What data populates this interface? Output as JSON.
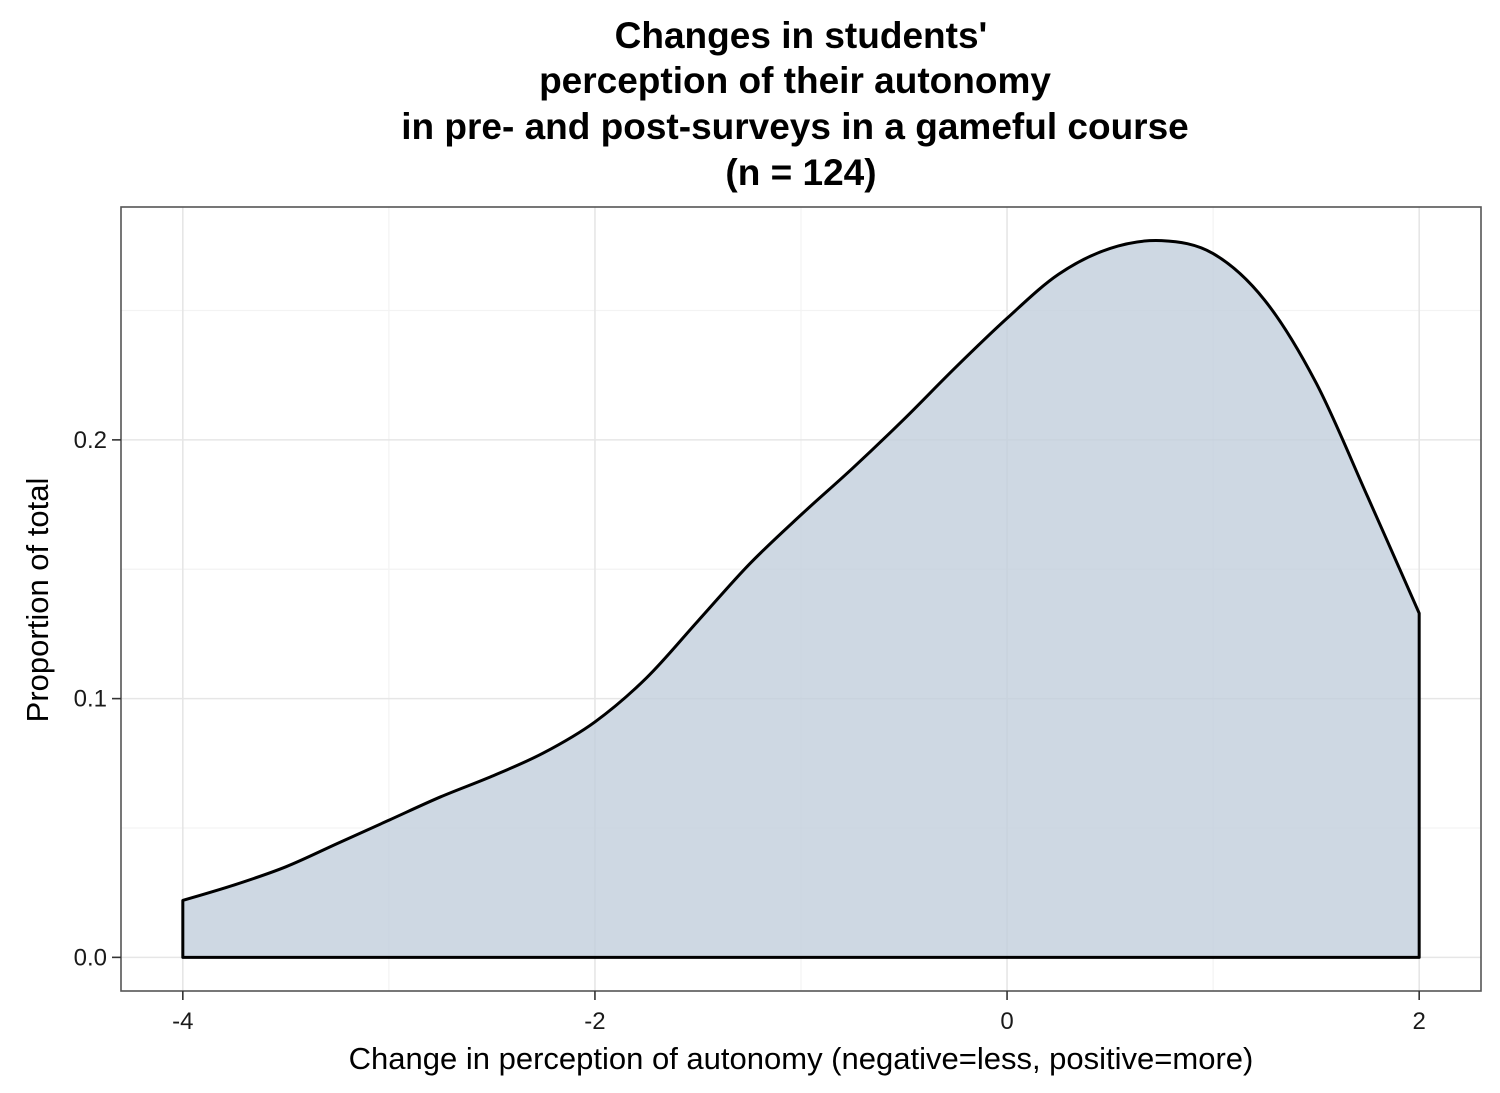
{
  "chart_data": {
    "type": "area",
    "title_lines": [
      "Changes in students'",
      "perception of their autonomy",
      "in pre- and post-surveys in a gameful course",
      "(n = 124)"
    ],
    "xlabel": "Change in perception of autonomy (negative=less, positive=more)",
    "ylabel": "Proportion of total",
    "xlim": [
      -4.3,
      2.3
    ],
    "ylim": [
      -0.013,
      0.29
    ],
    "x_ticks": [
      -4,
      -2,
      0,
      2
    ],
    "x_tick_labels": [
      "-4",
      "-2",
      "0",
      "2"
    ],
    "y_ticks": [
      0.0,
      0.1,
      0.2
    ],
    "y_tick_labels": [
      "0.0",
      "0.1",
      "0.2"
    ],
    "x_minor": [
      -3,
      -1,
      1
    ],
    "y_minor": [
      0.05,
      0.15,
      0.25
    ],
    "grid": true,
    "series": [
      {
        "x": [
          -4.0,
          -3.75,
          -3.5,
          -3.25,
          -3.0,
          -2.75,
          -2.5,
          -2.25,
          -2.0,
          -1.75,
          -1.5,
          -1.25,
          -1.0,
          -0.75,
          -0.5,
          -0.25,
          0.0,
          0.25,
          0.5,
          0.75,
          1.0,
          1.25,
          1.5,
          1.75,
          2.0
        ],
        "y": [
          0.022,
          0.028,
          0.035,
          0.044,
          0.053,
          0.062,
          0.07,
          0.079,
          0.091,
          0.108,
          0.13,
          0.152,
          0.171,
          0.189,
          0.208,
          0.228,
          0.247,
          0.264,
          0.274,
          0.277,
          0.272,
          0.254,
          0.222,
          0.178,
          0.133
        ],
        "fill": "#c0cddb",
        "stroke": "#000000"
      }
    ],
    "colors": {
      "panel_border": "#555555",
      "grid_major": "#e6e6e6",
      "grid_minor": "#f3f3f3"
    }
  }
}
